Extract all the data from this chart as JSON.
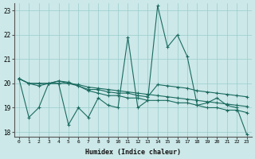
{
  "xlabel": "Humidex (Indice chaleur)",
  "ylabel": "",
  "xlim": [
    -0.5,
    23.5
  ],
  "ylim": [
    17.8,
    23.3
  ],
  "yticks": [
    18,
    19,
    20,
    21,
    22,
    23
  ],
  "xticks": [
    0,
    1,
    2,
    3,
    4,
    5,
    6,
    7,
    8,
    9,
    10,
    11,
    12,
    13,
    14,
    15,
    16,
    17,
    18,
    19,
    20,
    21,
    22,
    23
  ],
  "bg_color": "#cce8e8",
  "grid_color": "#99cccc",
  "line_color": "#1a6b60",
  "lines": [
    [
      20.2,
      18.6,
      19.0,
      20.0,
      20.0,
      18.3,
      19.0,
      18.6,
      19.4,
      19.1,
      19.0,
      21.9,
      19.0,
      19.3,
      23.2,
      21.5,
      22.0,
      21.1,
      19.1,
      19.2,
      19.4,
      19.1,
      19.0,
      17.9
    ],
    [
      20.2,
      20.0,
      19.9,
      20.0,
      20.1,
      20.05,
      19.9,
      19.75,
      19.75,
      19.65,
      19.6,
      19.6,
      19.5,
      19.45,
      19.95,
      19.9,
      19.85,
      19.8,
      19.7,
      19.65,
      19.6,
      19.55,
      19.5,
      19.45
    ],
    [
      20.2,
      20.0,
      20.0,
      20.0,
      20.0,
      20.0,
      19.95,
      19.85,
      19.8,
      19.75,
      19.7,
      19.65,
      19.6,
      19.55,
      19.5,
      19.45,
      19.4,
      19.35,
      19.3,
      19.25,
      19.2,
      19.15,
      19.1,
      19.05
    ],
    [
      20.2,
      20.0,
      20.0,
      20.0,
      20.1,
      20.0,
      19.9,
      19.7,
      19.6,
      19.5,
      19.5,
      19.4,
      19.4,
      19.3,
      19.3,
      19.3,
      19.2,
      19.2,
      19.1,
      19.0,
      19.0,
      18.9,
      18.9,
      18.8
    ]
  ]
}
